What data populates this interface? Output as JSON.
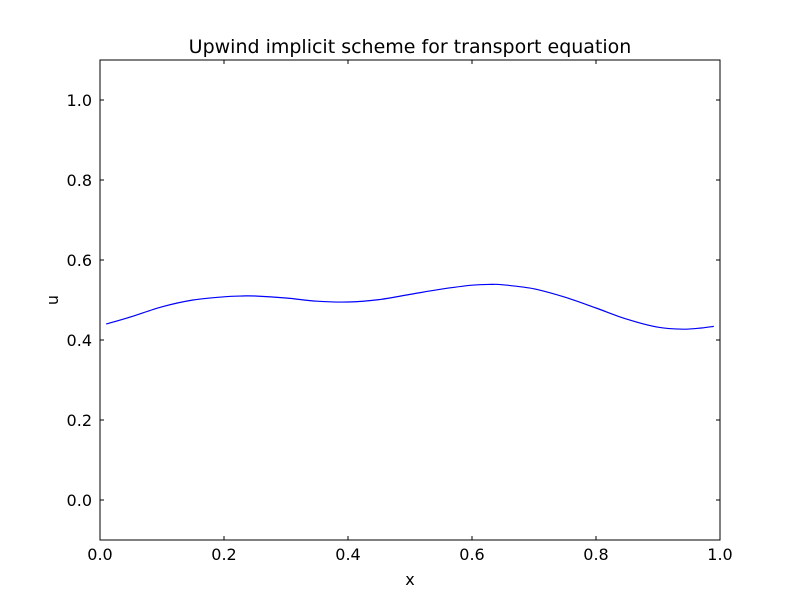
{
  "chart_data": {
    "type": "line",
    "title": "Upwind implicit scheme for transport equation",
    "xlabel": "x",
    "ylabel": "u",
    "xlim": [
      0.0,
      1.0
    ],
    "ylim": [
      -0.1,
      1.1
    ],
    "xticks": [
      "0.0",
      "0.2",
      "0.4",
      "0.6",
      "0.8",
      "1.0"
    ],
    "yticks": [
      "0.0",
      "0.2",
      "0.4",
      "0.6",
      "0.8",
      "1.0"
    ],
    "grid": false,
    "series": [
      {
        "color": "#0000ff",
        "x": [
          0.01,
          0.05,
          0.1,
          0.15,
          0.2,
          0.23,
          0.25,
          0.3,
          0.35,
          0.4,
          0.45,
          0.5,
          0.55,
          0.6,
          0.63,
          0.65,
          0.7,
          0.75,
          0.8,
          0.85,
          0.9,
          0.94,
          0.97,
          0.99
        ],
        "y": [
          0.44,
          0.458,
          0.483,
          0.5,
          0.508,
          0.51,
          0.51,
          0.505,
          0.497,
          0.495,
          0.501,
          0.514,
          0.527,
          0.537,
          0.539,
          0.538,
          0.528,
          0.507,
          0.48,
          0.452,
          0.432,
          0.427,
          0.43,
          0.434
        ]
      }
    ]
  }
}
